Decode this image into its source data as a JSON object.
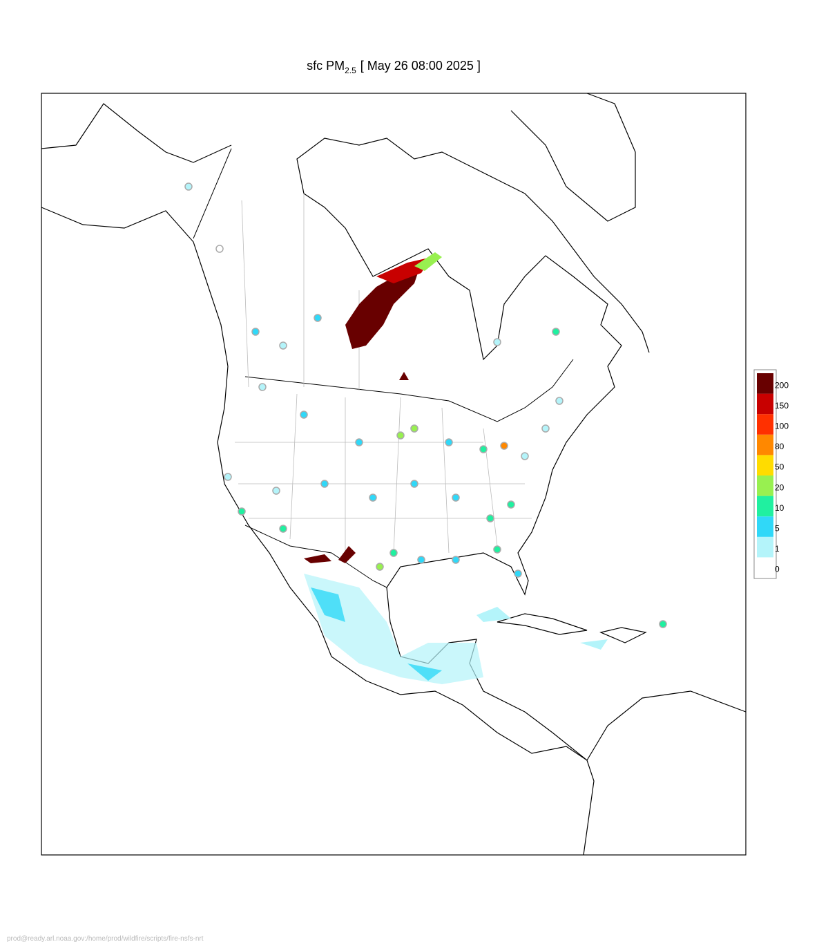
{
  "title": {
    "prefix": "sfc PM",
    "subscript": "2.5",
    "suffix": "[ May 26 08:00 2025 ]"
  },
  "colorbar": {
    "levels": [
      0,
      1,
      5,
      10,
      20,
      50,
      80,
      100,
      150,
      200
    ],
    "colors": [
      "#ffffff",
      "#b4f4fa",
      "#30d8f8",
      "#20f0a0",
      "#98f050",
      "#ffdc00",
      "#ff8800",
      "#ff3000",
      "#c80000",
      "#680000"
    ]
  },
  "footer": "prod@ready.arl.noaa.gov:/home/prod/wildfire/scripts/fire-nsfs-nrt"
}
